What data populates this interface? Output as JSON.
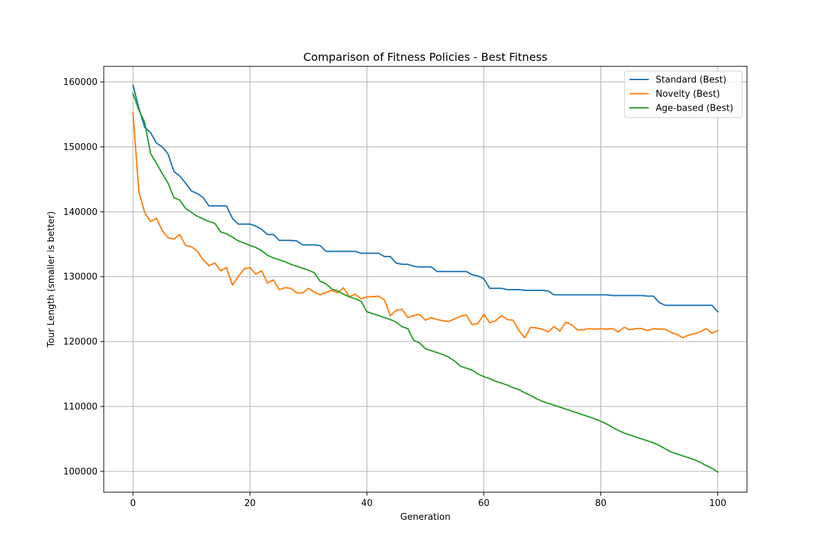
{
  "chart_data": {
    "type": "line",
    "title": "Comparison of Fitness Policies - Best Fitness",
    "xlabel": "Generation",
    "ylabel": "Tour Length (smaller is better)",
    "xlim": [
      -5,
      105
    ],
    "ylim": [
      96800,
      162400
    ],
    "xticks": [
      0,
      20,
      40,
      60,
      80,
      100
    ],
    "yticks": [
      100000,
      110000,
      120000,
      130000,
      140000,
      150000,
      160000
    ],
    "xtick_labels": [
      "0",
      "20",
      "40",
      "60",
      "80",
      "100"
    ],
    "ytick_labels": [
      "100000",
      "110000",
      "120000",
      "130000",
      "140000",
      "150000",
      "160000"
    ],
    "grid": true,
    "legend_position": "top-right",
    "x": [
      0,
      1,
      2,
      3,
      4,
      5,
      6,
      7,
      8,
      9,
      10,
      11,
      12,
      13,
      14,
      15,
      16,
      17,
      18,
      19,
      20,
      21,
      22,
      23,
      24,
      25,
      26,
      27,
      28,
      29,
      30,
      31,
      32,
      33,
      34,
      35,
      36,
      37,
      38,
      39,
      40,
      41,
      42,
      43,
      44,
      45,
      46,
      47,
      48,
      49,
      50,
      51,
      52,
      53,
      54,
      55,
      56,
      57,
      58,
      59,
      60,
      61,
      62,
      63,
      64,
      65,
      66,
      67,
      68,
      69,
      70,
      71,
      72,
      73,
      74,
      75,
      76,
      77,
      78,
      79,
      80,
      81,
      82,
      83,
      84,
      85,
      86,
      87,
      88,
      89,
      90,
      91,
      92,
      93,
      94,
      95,
      96,
      97,
      98,
      99,
      100
    ],
    "series": [
      {
        "name": "Standard (Best)",
        "color": "#1f77b4",
        "values": [
          159500,
          156000,
          153000,
          152200,
          150600,
          150000,
          148900,
          146200,
          145500,
          144400,
          143200,
          142800,
          142200,
          140900,
          140900,
          140900,
          140900,
          139000,
          138100,
          138100,
          138100,
          137800,
          137300,
          136500,
          136500,
          135600,
          135600,
          135600,
          135500,
          134900,
          134900,
          134900,
          134800,
          133900,
          133900,
          133900,
          133900,
          133900,
          133900,
          133600,
          133600,
          133600,
          133600,
          133100,
          133100,
          132100,
          131900,
          131900,
          131600,
          131500,
          131500,
          131500,
          130800,
          130800,
          130800,
          130800,
          130800,
          130800,
          130300,
          130100,
          129700,
          128200,
          128200,
          128200,
          128000,
          128000,
          128000,
          127900,
          127900,
          127900,
          127900,
          127800,
          127200,
          127200,
          127200,
          127200,
          127200,
          127200,
          127200,
          127200,
          127200,
          127200,
          127100,
          127100,
          127100,
          127100,
          127100,
          127100,
          127000,
          127000,
          126000,
          125600,
          125600,
          125600,
          125600,
          125600,
          125600,
          125600,
          125600,
          125600,
          124600
        ]
      },
      {
        "name": "Novelty (Best)",
        "color": "#ff7f0e",
        "values": [
          155300,
          143100,
          139900,
          138500,
          139000,
          137100,
          136000,
          135800,
          136500,
          134800,
          134600,
          133900,
          132600,
          131700,
          132100,
          130900,
          131400,
          128700,
          130000,
          131200,
          131400,
          130400,
          130900,
          129000,
          129500,
          128000,
          128300,
          128200,
          127500,
          127500,
          128200,
          127600,
          127200,
          127600,
          127900,
          127500,
          128300,
          126900,
          127300,
          126600,
          126900,
          126900,
          127000,
          126400,
          124000,
          124800,
          125000,
          123700,
          124000,
          124200,
          123300,
          123700,
          123400,
          123200,
          123100,
          123500,
          123900,
          124100,
          122600,
          122800,
          124200,
          122900,
          123200,
          124000,
          123400,
          123300,
          121700,
          120600,
          122200,
          122100,
          121900,
          121500,
          122300,
          121600,
          123000,
          122600,
          121800,
          121800,
          122000,
          121900,
          122000,
          121900,
          122000,
          121500,
          122200,
          121800,
          122000,
          122000,
          121700,
          122000,
          121900,
          121900,
          121400,
          121100,
          120600,
          121000,
          121200,
          121500,
          122000,
          121300,
          121700
        ]
      },
      {
        "name": "Age-based (Best)",
        "color": "#2ca02c",
        "values": [
          158200,
          155700,
          153800,
          149000,
          147500,
          145900,
          144400,
          142200,
          141800,
          140500,
          139900,
          139300,
          138900,
          138500,
          138200,
          136900,
          136600,
          136100,
          135500,
          135200,
          134800,
          134500,
          134000,
          133300,
          132900,
          132600,
          132300,
          131900,
          131600,
          131300,
          131000,
          130600,
          129300,
          128900,
          128100,
          127800,
          127300,
          126900,
          126600,
          126200,
          124600,
          124300,
          124000,
          123700,
          123400,
          123000,
          122300,
          122000,
          120200,
          119800,
          118900,
          118600,
          118300,
          118000,
          117600,
          117000,
          116200,
          115900,
          115600,
          115000,
          114600,
          114300,
          113900,
          113600,
          113300,
          112900,
          112600,
          112100,
          111700,
          111200,
          110800,
          110500,
          110200,
          109900,
          109600,
          109300,
          109000,
          108700,
          108400,
          108100,
          107700,
          107300,
          106800,
          106300,
          105900,
          105600,
          105300,
          105000,
          104700,
          104400,
          104000,
          103500,
          103000,
          102700,
          102400,
          102100,
          101800,
          101400,
          100900,
          100500,
          99900
        ]
      }
    ]
  }
}
